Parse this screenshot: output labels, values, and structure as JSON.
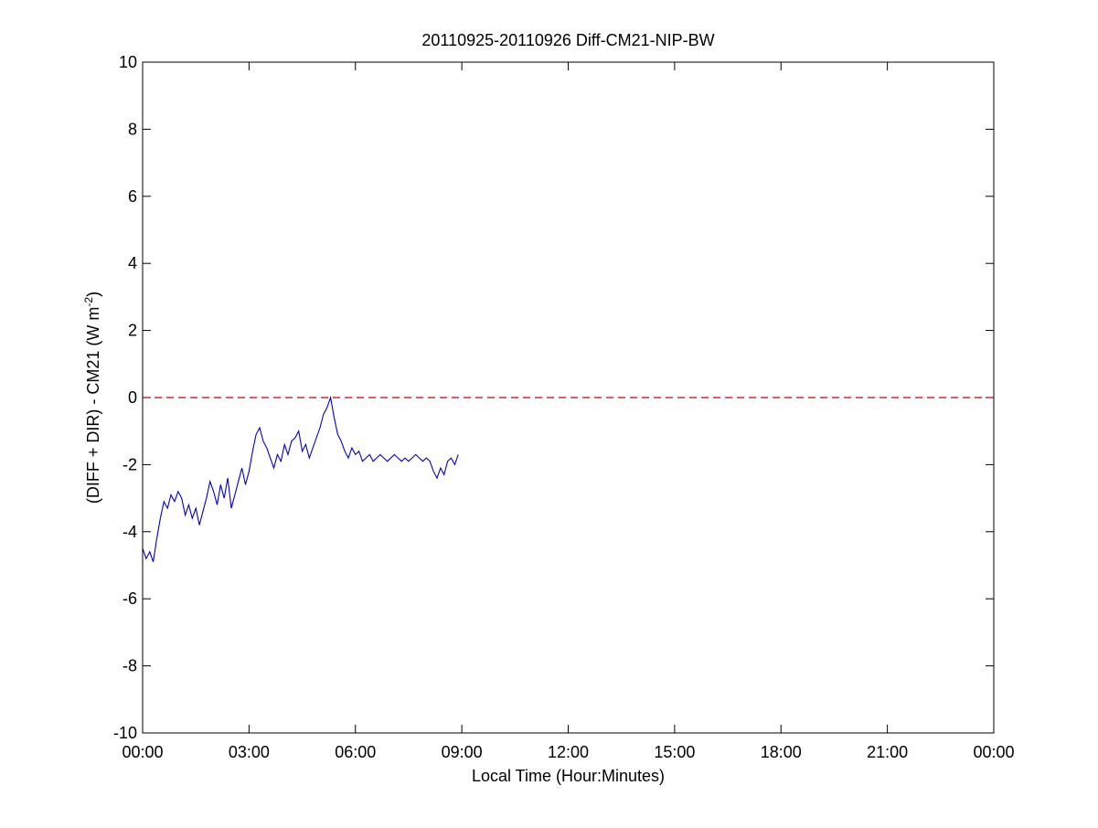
{
  "chart_data": {
    "type": "line",
    "title": "20110925-20110926 Diff-CM21-NIP-BW",
    "xlabel": "Local Time (Hour:Minutes)",
    "ylabel": "(DIFF + DIR) - CM21 (W m",
    "ylabel_superscript": "-2",
    "ylabel_suffix": ")",
    "xlim": [
      0,
      24
    ],
    "ylim": [
      -10,
      10
    ],
    "x_unit": "hours",
    "x_ticks": [
      0,
      3,
      6,
      9,
      12,
      15,
      18,
      21,
      24
    ],
    "x_tick_labels": [
      "00:00",
      "03:00",
      "06:00",
      "09:00",
      "12:00",
      "15:00",
      "18:00",
      "21:00",
      "00:00"
    ],
    "y_ticks": [
      -10,
      -8,
      -6,
      -4,
      -2,
      0,
      2,
      4,
      6,
      8,
      10
    ],
    "y_tick_labels": [
      "-10",
      "-8",
      "-6",
      "-4",
      "-2",
      "0",
      "2",
      "4",
      "6",
      "8",
      "10"
    ],
    "grid": false,
    "legend": "none",
    "reference_line": {
      "y": 0,
      "color": "#cc0000",
      "style": "dashed"
    },
    "series": [
      {
        "color": "#0000cc",
        "points": [
          [
            0.0,
            -4.5
          ],
          [
            0.1,
            -4.8
          ],
          [
            0.2,
            -4.6
          ],
          [
            0.3,
            -4.9
          ],
          [
            0.4,
            -4.2
          ],
          [
            0.5,
            -3.6
          ],
          [
            0.6,
            -3.1
          ],
          [
            0.7,
            -3.3
          ],
          [
            0.8,
            -2.9
          ],
          [
            0.9,
            -3.1
          ],
          [
            1.0,
            -2.8
          ],
          [
            1.1,
            -3.0
          ],
          [
            1.2,
            -3.5
          ],
          [
            1.3,
            -3.2
          ],
          [
            1.4,
            -3.6
          ],
          [
            1.5,
            -3.3
          ],
          [
            1.6,
            -3.8
          ],
          [
            1.7,
            -3.4
          ],
          [
            1.8,
            -3.0
          ],
          [
            1.9,
            -2.5
          ],
          [
            2.0,
            -2.8
          ],
          [
            2.1,
            -3.2
          ],
          [
            2.2,
            -2.6
          ],
          [
            2.3,
            -3.0
          ],
          [
            2.4,
            -2.4
          ],
          [
            2.5,
            -3.3
          ],
          [
            2.6,
            -2.9
          ],
          [
            2.7,
            -2.5
          ],
          [
            2.8,
            -2.1
          ],
          [
            2.9,
            -2.6
          ],
          [
            3.0,
            -2.2
          ],
          [
            3.1,
            -1.6
          ],
          [
            3.2,
            -1.1
          ],
          [
            3.3,
            -0.9
          ],
          [
            3.4,
            -1.3
          ],
          [
            3.5,
            -1.5
          ],
          [
            3.6,
            -1.8
          ],
          [
            3.7,
            -2.1
          ],
          [
            3.8,
            -1.7
          ],
          [
            3.9,
            -1.9
          ],
          [
            4.0,
            -1.4
          ],
          [
            4.1,
            -1.7
          ],
          [
            4.2,
            -1.3
          ],
          [
            4.3,
            -1.2
          ],
          [
            4.4,
            -1.0
          ],
          [
            4.5,
            -1.6
          ],
          [
            4.6,
            -1.4
          ],
          [
            4.7,
            -1.8
          ],
          [
            4.8,
            -1.5
          ],
          [
            4.9,
            -1.2
          ],
          [
            5.0,
            -0.9
          ],
          [
            5.1,
            -0.5
          ],
          [
            5.2,
            -0.3
          ],
          [
            5.3,
            0.0
          ],
          [
            5.4,
            -0.6
          ],
          [
            5.5,
            -1.1
          ],
          [
            5.6,
            -1.3
          ],
          [
            5.7,
            -1.6
          ],
          [
            5.8,
            -1.8
          ],
          [
            5.9,
            -1.5
          ],
          [
            6.0,
            -1.7
          ],
          [
            6.1,
            -1.6
          ],
          [
            6.2,
            -1.9
          ],
          [
            6.3,
            -1.8
          ],
          [
            6.4,
            -1.7
          ],
          [
            6.5,
            -1.9
          ],
          [
            6.6,
            -1.8
          ],
          [
            6.7,
            -1.7
          ],
          [
            6.8,
            -1.8
          ],
          [
            6.9,
            -1.9
          ],
          [
            7.0,
            -1.8
          ],
          [
            7.1,
            -1.7
          ],
          [
            7.2,
            -1.8
          ],
          [
            7.3,
            -1.9
          ],
          [
            7.4,
            -1.8
          ],
          [
            7.5,
            -1.9
          ],
          [
            7.6,
            -1.8
          ],
          [
            7.7,
            -1.7
          ],
          [
            7.8,
            -1.8
          ],
          [
            7.9,
            -1.9
          ],
          [
            8.0,
            -1.8
          ],
          [
            8.1,
            -1.9
          ],
          [
            8.2,
            -2.2
          ],
          [
            8.3,
            -2.4
          ],
          [
            8.4,
            -2.1
          ],
          [
            8.5,
            -2.3
          ],
          [
            8.6,
            -1.9
          ],
          [
            8.7,
            -1.8
          ],
          [
            8.8,
            -2.0
          ],
          [
            8.9,
            -1.7
          ]
        ]
      }
    ]
  }
}
